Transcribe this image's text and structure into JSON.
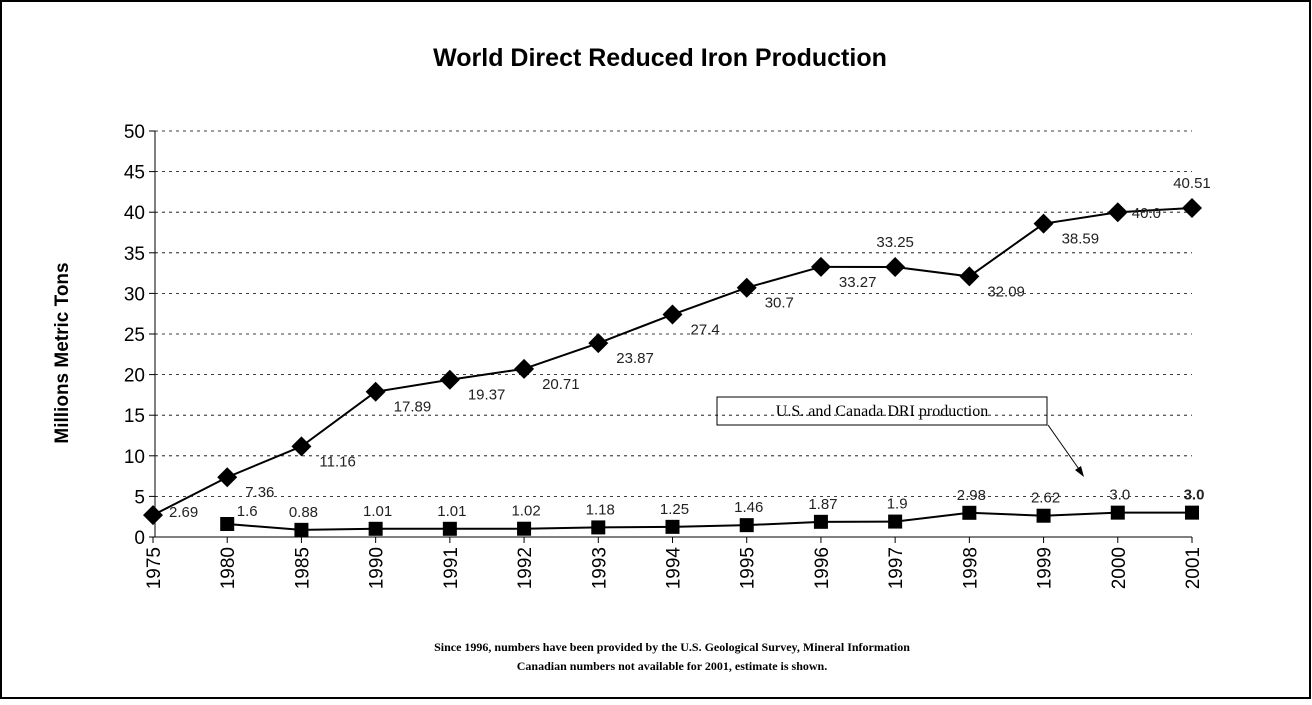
{
  "chart_data": {
    "type": "line",
    "title": "World Direct Reduced Iron Production",
    "ylabel": "Millions Metric Tons",
    "categories": [
      "1975",
      "1980",
      "1985",
      "1990",
      "1991",
      "1992",
      "1993",
      "1994",
      "1995",
      "1996",
      "1997",
      "1998",
      "1999",
      "2000",
      "2001"
    ],
    "series": [
      {
        "color": "#000000",
        "marker": "diamond",
        "values": [
          2.69,
          7.36,
          11.16,
          17.89,
          19.37,
          20.71,
          23.87,
          27.4,
          30.7,
          33.27,
          33.25,
          32.09,
          38.59,
          40.0,
          40.51
        ],
        "value_labels": [
          "2.69",
          "7.36",
          "11.16",
          "17.89",
          "19.37",
          "20.71",
          "23.87",
          "27.4",
          "30.7",
          "33.27",
          "33.25",
          "32.09",
          "38.59",
          "40.0",
          "40.51"
        ]
      },
      {
        "name": "U.S. and Canada DRI production",
        "color": "#000000",
        "marker": "square",
        "values": [
          null,
          1.6,
          0.88,
          1.01,
          1.01,
          1.02,
          1.18,
          1.25,
          1.46,
          1.87,
          1.9,
          2.98,
          2.62,
          3.0,
          3.0
        ],
        "value_labels": [
          null,
          "1.6",
          "0.88",
          "1.01",
          "1.01",
          "1.02",
          "1.18",
          "1.25",
          "1.46",
          "1.87",
          "1.9",
          "2.98",
          "2.62",
          "3.0",
          "3.0"
        ]
      }
    ],
    "ylim": [
      0,
      50
    ],
    "yticks": [
      0,
      5,
      10,
      15,
      20,
      25,
      30,
      35,
      40,
      45,
      50
    ],
    "grid": true,
    "notes": [
      "Since 1996, numbers have been provided by the U.S. Geological Survey, Mineral Information",
      "Canadian numbers not available for 2001, estimate is shown."
    ]
  }
}
